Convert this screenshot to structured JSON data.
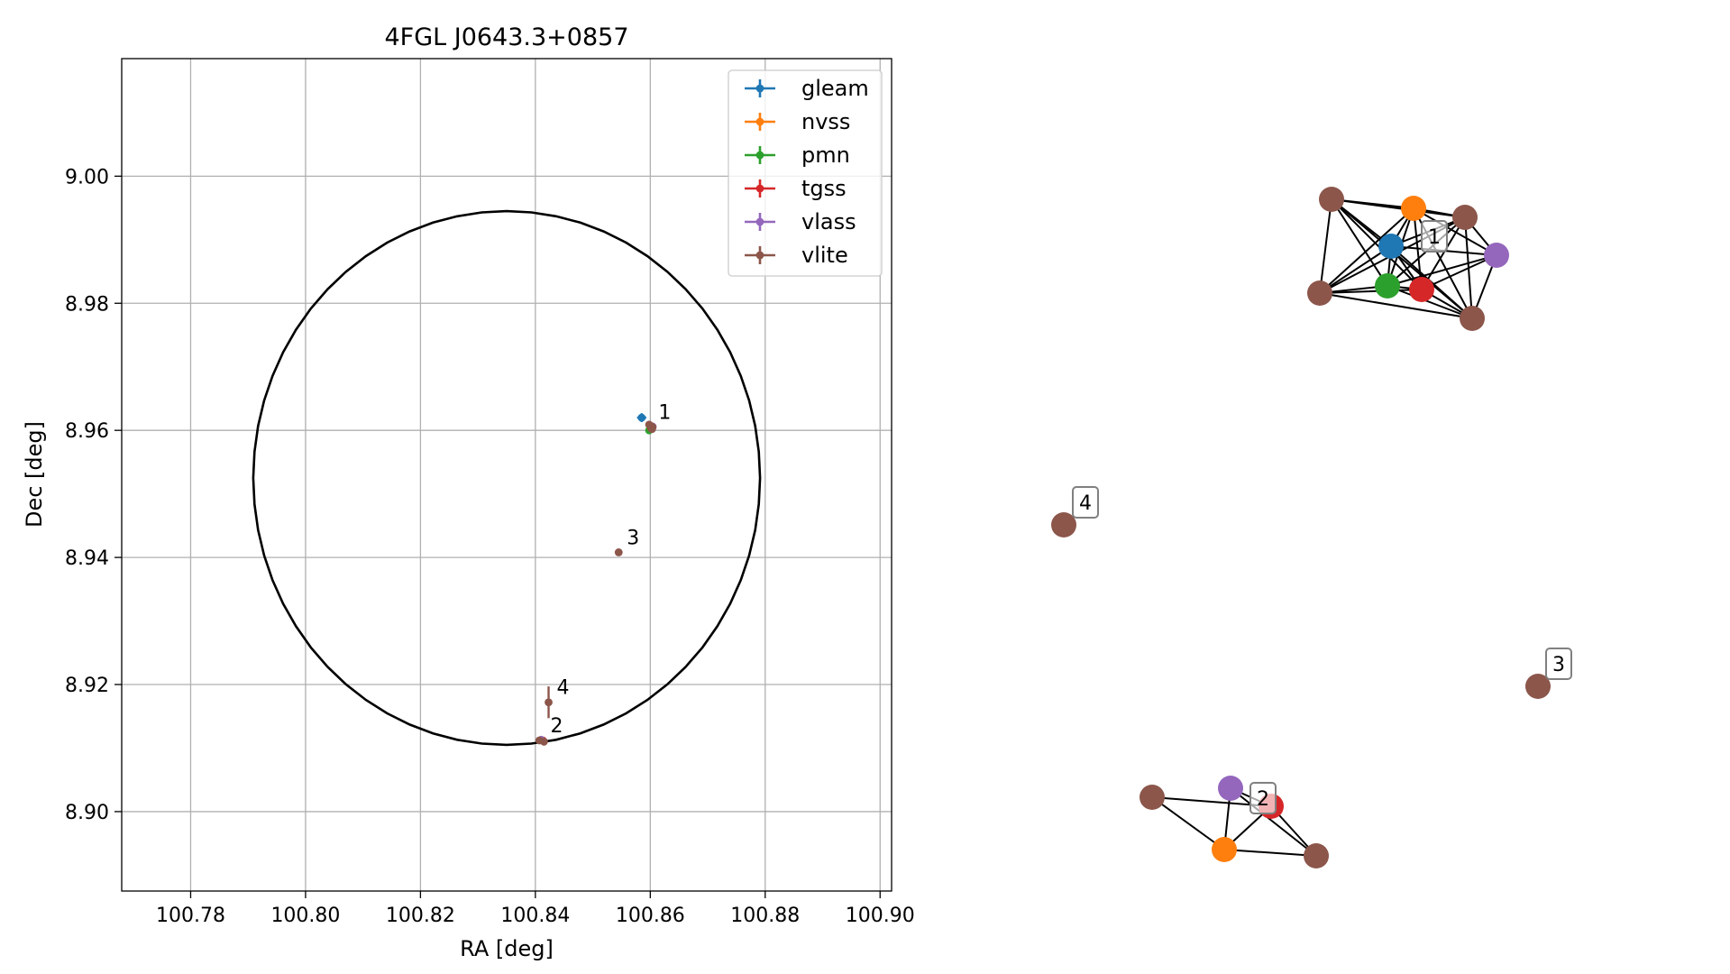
{
  "chart_data": [
    {
      "type": "scatter",
      "title": "4FGL J0643.3+0857",
      "xlabel": "RA [deg]",
      "ylabel": "Dec [deg]",
      "xlim": [
        100.768,
        100.902
      ],
      "ylim": [
        8.8875,
        9.0185
      ],
      "xticks": [
        100.78,
        100.8,
        100.82,
        100.84,
        100.86,
        100.88,
        100.9
      ],
      "xtick_labels": [
        "100.78",
        "100.80",
        "100.82",
        "100.84",
        "100.86",
        "100.88",
        "100.90"
      ],
      "yticks": [
        8.9,
        8.92,
        8.94,
        8.96,
        8.98,
        9.0
      ],
      "ytick_labels": [
        "8.90",
        "8.92",
        "8.94",
        "8.96",
        "8.98",
        "9.00"
      ],
      "grid": true,
      "legend_position": "top-right",
      "ellipse": {
        "center": [
          100.835,
          8.9525
        ],
        "radius_ra": 0.0441,
        "radius_dec": 0.042,
        "color": "#000000"
      },
      "series": [
        {
          "name": "gleam",
          "color": "#1f77b4",
          "points": [
            {
              "x": 100.8585,
              "y": 8.962,
              "xerr": 0.0008,
              "yerr": 0.0007
            }
          ]
        },
        {
          "name": "nvss",
          "color": "#ff7f0e",
          "points": [
            {
              "x": 100.86,
              "y": 8.9605,
              "xerr": 0.0002,
              "yerr": 0.0002
            },
            {
              "x": 100.8412,
              "y": 8.9112,
              "xerr": 0.0002,
              "yerr": 0.0002
            }
          ]
        },
        {
          "name": "pmn",
          "color": "#2ca02c",
          "points": [
            {
              "x": 100.8598,
              "y": 8.96,
              "xerr": 0.0004,
              "yerr": 0.0004
            }
          ]
        },
        {
          "name": "tgss",
          "color": "#d62728",
          "points": [
            {
              "x": 100.8602,
              "y": 8.9603,
              "xerr": 0.0003,
              "yerr": 0.0003
            },
            {
              "x": 100.8413,
              "y": 8.9112,
              "xerr": 0.0003,
              "yerr": 0.0003
            }
          ]
        },
        {
          "name": "vlass",
          "color": "#9467bd",
          "points": [
            {
              "x": 100.8604,
              "y": 8.9606,
              "xerr": 0.0001,
              "yerr": 0.0001
            },
            {
              "x": 100.841,
              "y": 8.9113,
              "xerr": 0.0001,
              "yerr": 0.0001
            }
          ]
        },
        {
          "name": "vlite",
          "color": "#8c564b",
          "points": [
            {
              "x": 100.8601,
              "y": 8.9607,
              "xerr": 0.0006,
              "yerr": 0.0006
            },
            {
              "x": 100.8604,
              "y": 8.9605,
              "xerr": 0.0006,
              "yerr": 0.0006
            },
            {
              "x": 100.8598,
              "y": 8.9609,
              "xerr": 0.0006,
              "yerr": 0.0006
            },
            {
              "x": 100.8603,
              "y": 8.9602,
              "xerr": 0.0006,
              "yerr": 0.0006
            },
            {
              "x": 100.8407,
              "y": 8.9112,
              "xerr": 0.0004,
              "yerr": 0.0004
            },
            {
              "x": 100.8415,
              "y": 8.911,
              "xerr": 0.0004,
              "yerr": 0.0004
            },
            {
              "x": 100.8545,
              "y": 8.9408,
              "xerr": 0.0004,
              "yerr": 0.0004
            },
            {
              "x": 100.8423,
              "y": 8.9172,
              "xerr": 0.0003,
              "yerr": 0.0025
            }
          ]
        }
      ],
      "annotations": [
        {
          "text": "1",
          "x": 100.86,
          "y": 8.9605
        },
        {
          "text": "2",
          "x": 100.8412,
          "y": 8.9112
        },
        {
          "text": "3",
          "x": 100.8545,
          "y": 8.9408
        },
        {
          "text": "4",
          "x": 100.8423,
          "y": 8.9172
        }
      ]
    },
    {
      "type": "network",
      "nodes": [
        {
          "id": "g1",
          "group": "1",
          "color": "#1f77b4"
        },
        {
          "id": "n1",
          "group": "1",
          "color": "#ff7f0e"
        },
        {
          "id": "p1",
          "group": "1",
          "color": "#2ca02c"
        },
        {
          "id": "t1",
          "group": "1",
          "color": "#d62728"
        },
        {
          "id": "v1",
          "group": "1",
          "color": "#9467bd"
        },
        {
          "id": "l1a",
          "group": "1",
          "color": "#8c564b"
        },
        {
          "id": "l1b",
          "group": "1",
          "color": "#8c564b"
        },
        {
          "id": "l1c",
          "group": "1",
          "color": "#8c564b"
        },
        {
          "id": "l1d",
          "group": "1",
          "color": "#8c564b"
        },
        {
          "id": "v2",
          "group": "2",
          "color": "#9467bd"
        },
        {
          "id": "t2",
          "group": "2",
          "color": "#d62728"
        },
        {
          "id": "n2",
          "group": "2",
          "color": "#ff7f0e"
        },
        {
          "id": "l2a",
          "group": "2",
          "color": "#8c564b"
        },
        {
          "id": "l2b",
          "group": "2",
          "color": "#8c564b"
        },
        {
          "id": "l3",
          "group": "3",
          "color": "#8c564b"
        },
        {
          "id": "l4",
          "group": "4",
          "color": "#8c564b"
        }
      ],
      "edges": [
        [
          "l1a",
          "n1"
        ],
        [
          "l1a",
          "l1b"
        ],
        [
          "l1a",
          "g1"
        ],
        [
          "l1a",
          "p1"
        ],
        [
          "l1a",
          "t1"
        ],
        [
          "l1a",
          "l1c"
        ],
        [
          "l1a",
          "l1d"
        ],
        [
          "n1",
          "l1b"
        ],
        [
          "n1",
          "g1"
        ],
        [
          "n1",
          "p1"
        ],
        [
          "n1",
          "t1"
        ],
        [
          "n1",
          "l1c"
        ],
        [
          "n1",
          "l1d"
        ],
        [
          "n1",
          "v1"
        ],
        [
          "l1b",
          "g1"
        ],
        [
          "l1b",
          "p1"
        ],
        [
          "l1b",
          "t1"
        ],
        [
          "l1b",
          "l1c"
        ],
        [
          "l1b",
          "l1d"
        ],
        [
          "l1b",
          "v1"
        ],
        [
          "g1",
          "p1"
        ],
        [
          "g1",
          "t1"
        ],
        [
          "g1",
          "l1c"
        ],
        [
          "g1",
          "l1d"
        ],
        [
          "g1",
          "v1"
        ],
        [
          "p1",
          "t1"
        ],
        [
          "p1",
          "l1c"
        ],
        [
          "p1",
          "l1d"
        ],
        [
          "p1",
          "v1"
        ],
        [
          "t1",
          "l1c"
        ],
        [
          "t1",
          "l1d"
        ],
        [
          "t1",
          "v1"
        ],
        [
          "l1c",
          "l1d"
        ],
        [
          "l1d",
          "v1"
        ],
        [
          "l2a",
          "n2"
        ],
        [
          "l2a",
          "t2"
        ],
        [
          "n2",
          "v2"
        ],
        [
          "n2",
          "t2"
        ],
        [
          "n2",
          "l2b"
        ],
        [
          "t2",
          "l2b"
        ],
        [
          "v2",
          "t2"
        ],
        [
          "v2",
          "l2b"
        ]
      ],
      "labels": [
        {
          "text": "1",
          "group": "1"
        },
        {
          "text": "2",
          "group": "2"
        },
        {
          "text": "3",
          "group": "3"
        },
        {
          "text": "4",
          "group": "4"
        }
      ]
    }
  ]
}
